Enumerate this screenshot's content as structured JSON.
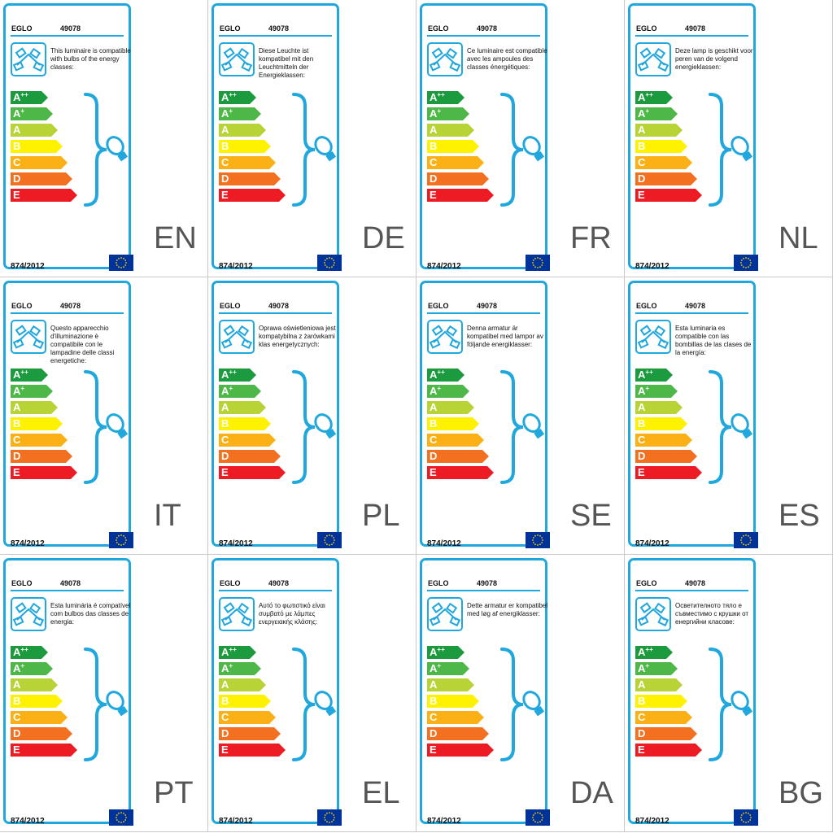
{
  "labels": [
    {
      "brand": "EGLO",
      "model": "49078",
      "compat": "This luminaire is compatible with bulbs of the energy classes:",
      "regulation": "874/2012",
      "lang": "EN"
    },
    {
      "brand": "EGLO",
      "model": "49078",
      "compat": "Diese Leuchte ist kompatibel mit den Leuchtmitteln der Energieklassen:",
      "regulation": "874/2012",
      "lang": "DE"
    },
    {
      "brand": "EGLO",
      "model": "49078",
      "compat": "Ce luminaire est compatible avec les ampoules des classes énergétiques:",
      "regulation": "874/2012",
      "lang": "FR"
    },
    {
      "brand": "EGLO",
      "model": "49078",
      "compat": "Deze lamp is geschikt voor peren van de volgend energieklassen:",
      "regulation": "874/2012",
      "lang": "NL"
    },
    {
      "brand": "EGLO",
      "model": "49078",
      "compat": "Questo apparecchio d'illuminazione è compatibile con le lampadine delle classi energetiche:",
      "regulation": "874/2012",
      "lang": "IT"
    },
    {
      "brand": "EGLO",
      "model": "49078",
      "compat": "Oprawa oświetleniowa jest kompatybilna z żarówkami klas energetycznych:",
      "regulation": "874/2012",
      "lang": "PL"
    },
    {
      "brand": "EGLO",
      "model": "49078",
      "compat": "Denna armatur är kompatibel med lampor av följande energiklasser:",
      "regulation": "874/2012",
      "lang": "SE"
    },
    {
      "brand": "EGLO",
      "model": "49078",
      "compat": "Esta luminaria es compatible con las bombillas de las clases de la energía:",
      "regulation": "874/2012",
      "lang": "ES"
    },
    {
      "brand": "EGLO",
      "model": "49078",
      "compat": "Esta luminária é compatível com bulbos das classes de energia:",
      "regulation": "874/2012",
      "lang": "PT"
    },
    {
      "brand": "EGLO",
      "model": "49078",
      "compat": "Αυτό το φωτιστικό είναι συμβατό με λάμπες ενεργειακής κλάσης:",
      "regulation": "874/2012",
      "lang": "EL"
    },
    {
      "brand": "EGLO",
      "model": "49078",
      "compat": "Dette armatur er kompatibel med løg af energiklasser:",
      "regulation": "874/2012",
      "lang": "DA"
    },
    {
      "brand": "EGLO",
      "model": "49078",
      "compat": "Осветителното тяло е съвместимо с крушки от енергийни класове:",
      "regulation": "874/2012",
      "lang": "BG"
    }
  ],
  "energy_classes": [
    {
      "letter": "A",
      "sup": "++",
      "color": "#1b9a3e"
    },
    {
      "letter": "A",
      "sup": "+",
      "color": "#4db848"
    },
    {
      "letter": "A",
      "sup": "",
      "color": "#b7d336"
    },
    {
      "letter": "B",
      "sup": "",
      "color": "#fff200"
    },
    {
      "letter": "C",
      "sup": "",
      "color": "#fbb116"
    },
    {
      "letter": "D",
      "sup": "",
      "color": "#f37021"
    },
    {
      "letter": "E",
      "sup": "",
      "color": "#ed1c24"
    }
  ],
  "colors": {
    "frame": "#1fa7de",
    "eu_blue": "#003399",
    "eu_star": "#ffcc00",
    "lang_text": "#555555"
  },
  "icons": [
    "luminaire-icon",
    "brace-icon",
    "bulb-icon",
    "eu-flag-icon"
  ]
}
